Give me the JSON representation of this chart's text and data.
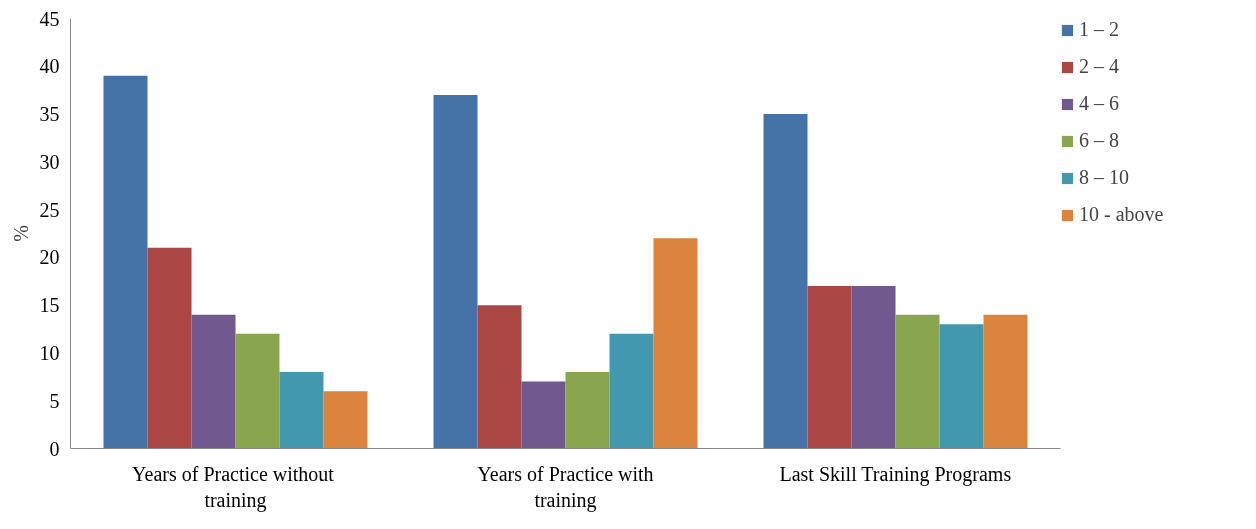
{
  "chart_data": {
    "type": "bar",
    "ylabel": "%",
    "categories": [
      "Years of  Practice without\ntraining",
      "Years of Practice with\ntraining",
      "Last Skill Training Programs"
    ],
    "series": [
      {
        "name": "1 – 2",
        "color": "#4572a7",
        "values": [
          39,
          37,
          35
        ]
      },
      {
        "name": "2 – 4",
        "color": "#aa4643",
        "values": [
          21,
          15,
          17
        ]
      },
      {
        "name": "4 – 6",
        "color": "#71588f",
        "values": [
          14,
          7,
          17
        ]
      },
      {
        "name": "6 – 8",
        "color": "#89a54e",
        "values": [
          12,
          8,
          14
        ]
      },
      {
        "name": "8 – 10",
        "color": "#4198af",
        "values": [
          8,
          12,
          13
        ]
      },
      {
        "name": "10 - above",
        "color": "#db843d",
        "values": [
          6,
          22,
          14
        ]
      }
    ],
    "ylim": [
      0,
      45
    ],
    "yticks": [
      0,
      5,
      10,
      15,
      20,
      25,
      30,
      35,
      40,
      45
    ],
    "grid": false,
    "legend": "right"
  }
}
